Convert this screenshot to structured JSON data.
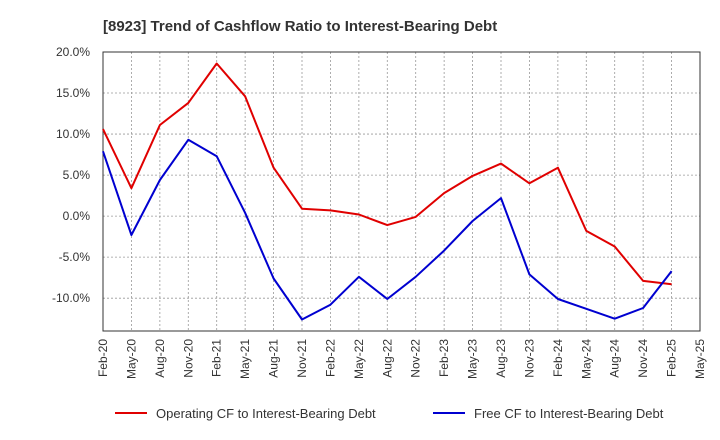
{
  "chart_data": {
    "type": "line",
    "title": "[8923]  Trend of Cashflow Ratio to Interest-Bearing Debt",
    "xlabel": "",
    "ylabel": "",
    "x": [
      "Feb-20",
      "May-20",
      "Aug-20",
      "Nov-20",
      "Feb-21",
      "May-21",
      "Aug-21",
      "Nov-21",
      "Feb-22",
      "May-22",
      "Aug-22",
      "Nov-22",
      "Feb-23",
      "May-23",
      "Aug-23",
      "Nov-23",
      "Feb-24",
      "May-24",
      "Aug-24",
      "Nov-24",
      "Feb-25",
      "May-25"
    ],
    "y_ticks": [
      "20.0%",
      "15.0%",
      "10.0%",
      "5.0%",
      "0.0%",
      "-5.0%",
      "-10.0%"
    ],
    "y_tick_values": [
      20,
      15,
      10,
      5,
      0,
      -5,
      -10
    ],
    "ylim": [
      -14,
      20
    ],
    "grid": true,
    "legend_position": "bottom",
    "series": [
      {
        "name": "Operating CF to Interest-Bearing Debt",
        "color": "#e00000",
        "values": [
          10.6,
          3.4,
          11.1,
          13.8,
          18.6,
          14.6,
          5.9,
          0.9,
          0.7,
          0.2,
          -1.1,
          -0.1,
          2.8,
          4.9,
          6.4,
          4.0,
          5.9,
          -1.8,
          -3.7,
          -7.9,
          -8.3,
          null
        ]
      },
      {
        "name": "Free CF to Interest-Bearing Debt",
        "color": "#0000d0",
        "values": [
          7.9,
          -2.3,
          4.4,
          9.3,
          7.3,
          0.4,
          -7.6,
          -12.6,
          -10.8,
          -7.4,
          -10.1,
          -7.4,
          -4.2,
          -0.6,
          2.2,
          -7.1,
          -10.1,
          -11.3,
          -12.5,
          -11.2,
          -6.7,
          null
        ]
      }
    ]
  }
}
